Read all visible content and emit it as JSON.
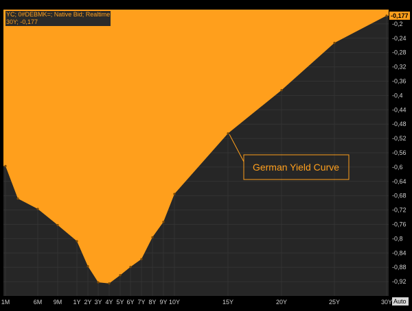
{
  "chart_data": {
    "type": "area",
    "title": "",
    "xlabel": "",
    "ylabel": "",
    "legend": [
      "YC; 0#DEBMK=; Native Bid; Realtime",
      "30Y; -0,177"
    ],
    "annotation": "German Yield Curve",
    "last_value_label": "-0,177",
    "auto_label": "Auto",
    "ylim": [
      -0.96,
      -0.16
    ],
    "y_ticks": [
      {
        "value": -0.2,
        "label": "-0,2"
      },
      {
        "value": -0.24,
        "label": "-0,24"
      },
      {
        "value": -0.28,
        "label": "-0,28"
      },
      {
        "value": -0.32,
        "label": "-0,32"
      },
      {
        "value": -0.36,
        "label": "-0,36"
      },
      {
        "value": -0.4,
        "label": "-0,4"
      },
      {
        "value": -0.44,
        "label": "-0,44"
      },
      {
        "value": -0.48,
        "label": "-0,48"
      },
      {
        "value": -0.52,
        "label": "-0,52"
      },
      {
        "value": -0.56,
        "label": "-0,56"
      },
      {
        "value": -0.6,
        "label": "-0,6"
      },
      {
        "value": -0.64,
        "label": "-0,64"
      },
      {
        "value": -0.68,
        "label": "-0,68"
      },
      {
        "value": -0.72,
        "label": "-0,72"
      },
      {
        "value": -0.76,
        "label": "-0,76"
      },
      {
        "value": -0.8,
        "label": "-0,8"
      },
      {
        "value": -0.84,
        "label": "-0,84"
      },
      {
        "value": -0.88,
        "label": "-0,88"
      },
      {
        "value": -0.92,
        "label": "-0,92"
      }
    ],
    "x_tick_labels": [
      "1M",
      "6M",
      "9M",
      "1Y",
      "2Y",
      "3Y",
      "4Y",
      "5Y",
      "6Y",
      "7Y",
      "8Y",
      "9Y",
      "10Y",
      "15Y",
      "20Y",
      "25Y",
      "30Y"
    ],
    "points": [
      {
        "tenor": "1M",
        "y": -0.597
      },
      {
        "tenor": "3M",
        "y": -0.688
      },
      {
        "tenor": "6M",
        "y": -0.717
      },
      {
        "tenor": "9M",
        "y": -0.762
      },
      {
        "tenor": "1Y",
        "y": -0.807
      },
      {
        "tenor": "2Y",
        "y": -0.877
      },
      {
        "tenor": "3Y",
        "y": -0.922
      },
      {
        "tenor": "4Y",
        "y": -0.925
      },
      {
        "tenor": "5Y",
        "y": -0.902
      },
      {
        "tenor": "6Y",
        "y": -0.879
      },
      {
        "tenor": "7Y",
        "y": -0.857
      },
      {
        "tenor": "8Y",
        "y": -0.796
      },
      {
        "tenor": "9Y",
        "y": -0.753
      },
      {
        "tenor": "10Y",
        "y": -0.675
      },
      {
        "tenor": "15Y",
        "y": -0.506
      },
      {
        "tenor": "20Y",
        "y": -0.385
      },
      {
        "tenor": "25Y",
        "y": -0.253
      },
      {
        "tenor": "30Y",
        "y": -0.177
      }
    ],
    "colors": {
      "background": "#262626",
      "area": "#ff9f1c",
      "grid": "#333333",
      "axis_text": "#d0d0d0",
      "annotation": "#ff9f1c"
    }
  }
}
